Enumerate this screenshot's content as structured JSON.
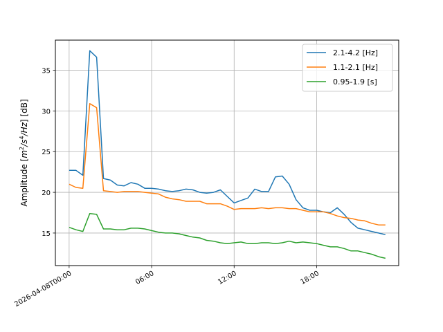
{
  "chart_data": {
    "type": "line",
    "title": "",
    "xlabel": "",
    "ylabel": "Amplitude [m²/s⁴/Hz] [dB]",
    "ylabel_parts": {
      "prefix": "Amplitude [",
      "var_m": "m",
      "exp_2": "2",
      "slash1": "/",
      "var_s": "s",
      "exp_4": "4",
      "slash2": "/",
      "var_Hz": "Hz",
      "suffix": "] [dB]"
    },
    "x": [
      "2026-04-08 00:00",
      "2026-04-08 00:30",
      "2026-04-08 01:00",
      "2026-04-08 01:30",
      "2026-04-08 02:00",
      "2026-04-08 02:30",
      "2026-04-08 03:00",
      "2026-04-08 03:30",
      "2026-04-08 04:00",
      "2026-04-08 04:30",
      "2026-04-08 05:00",
      "2026-04-08 05:30",
      "2026-04-08 06:00",
      "2026-04-08 06:30",
      "2026-04-08 07:00",
      "2026-04-08 07:30",
      "2026-04-08 08:00",
      "2026-04-08 08:30",
      "2026-04-08 09:00",
      "2026-04-08 09:30",
      "2026-04-08 10:00",
      "2026-04-08 10:30",
      "2026-04-08 11:00",
      "2026-04-08 11:30",
      "2026-04-08 12:00",
      "2026-04-08 12:30",
      "2026-04-08 13:00",
      "2026-04-08 13:30",
      "2026-04-08 14:00",
      "2026-04-08 14:30",
      "2026-04-08 15:00",
      "2026-04-08 15:30",
      "2026-04-08 16:00",
      "2026-04-08 16:30",
      "2026-04-08 17:00",
      "2026-04-08 17:30",
      "2026-04-08 18:00",
      "2026-04-08 18:30",
      "2026-04-08 19:00",
      "2026-04-08 19:30",
      "2026-04-08 20:00",
      "2026-04-08 20:30",
      "2026-04-08 21:00",
      "2026-04-08 21:30",
      "2026-04-08 22:00",
      "2026-04-08 22:30",
      "2026-04-08 23:00"
    ],
    "series": [
      {
        "name": "2.1-4.2 [Hz]",
        "color": "#1f77b4",
        "values": [
          22.7,
          22.7,
          22.1,
          37.4,
          36.6,
          21.7,
          21.5,
          20.9,
          20.8,
          21.2,
          21.0,
          20.5,
          20.5,
          20.4,
          20.2,
          20.1,
          20.2,
          20.4,
          20.3,
          20.0,
          19.9,
          20.0,
          20.3,
          19.5,
          18.7,
          19.0,
          19.3,
          20.4,
          20.1,
          20.1,
          21.9,
          22.0,
          21.0,
          19.1,
          18.1,
          17.8,
          17.8,
          17.6,
          17.5,
          18.1,
          17.3,
          16.3,
          15.6,
          15.4,
          15.2,
          15.0,
          14.8
        ]
      },
      {
        "name": "1.1-2.1 [Hz]",
        "color": "#ff7f0e",
        "values": [
          21.0,
          20.6,
          20.5,
          30.9,
          30.4,
          20.2,
          20.1,
          20.0,
          20.1,
          20.1,
          20.1,
          20.0,
          19.9,
          19.8,
          19.4,
          19.2,
          19.1,
          18.9,
          18.9,
          18.9,
          18.6,
          18.6,
          18.6,
          18.3,
          17.9,
          18.0,
          18.0,
          18.0,
          18.1,
          18.0,
          18.1,
          18.1,
          18.0,
          18.0,
          17.8,
          17.6,
          17.6,
          17.6,
          17.4,
          17.1,
          16.9,
          16.8,
          16.6,
          16.5,
          16.2,
          16.0,
          16.0
        ]
      },
      {
        "name": "0.95-1.9 [s]",
        "color": "#2ca02c",
        "values": [
          15.7,
          15.4,
          15.2,
          17.4,
          17.3,
          15.5,
          15.5,
          15.4,
          15.4,
          15.6,
          15.6,
          15.5,
          15.3,
          15.1,
          15.0,
          15.0,
          14.9,
          14.7,
          14.5,
          14.4,
          14.1,
          14.0,
          13.8,
          13.7,
          13.8,
          13.9,
          13.7,
          13.7,
          13.8,
          13.8,
          13.7,
          13.8,
          14.0,
          13.8,
          13.9,
          13.8,
          13.7,
          13.5,
          13.3,
          13.3,
          13.1,
          12.8,
          12.8,
          12.6,
          12.4,
          12.1,
          11.9
        ]
      }
    ],
    "xlim": [
      "2026-04-07 23:00",
      "2026-04-08 23:58"
    ],
    "ylim": [
      11.0,
      38.7
    ],
    "xticks": [
      {
        "at": "2026-04-08 00:00",
        "label": "2026-04-08T00:00"
      },
      {
        "at": "2026-04-08 06:00",
        "label": "06:00"
      },
      {
        "at": "2026-04-08 12:00",
        "label": "12:00"
      },
      {
        "at": "2026-04-08 18:00",
        "label": "18:00"
      }
    ],
    "yticks": [
      15,
      20,
      25,
      30,
      35
    ],
    "grid": true,
    "legend_position": "top-right"
  }
}
